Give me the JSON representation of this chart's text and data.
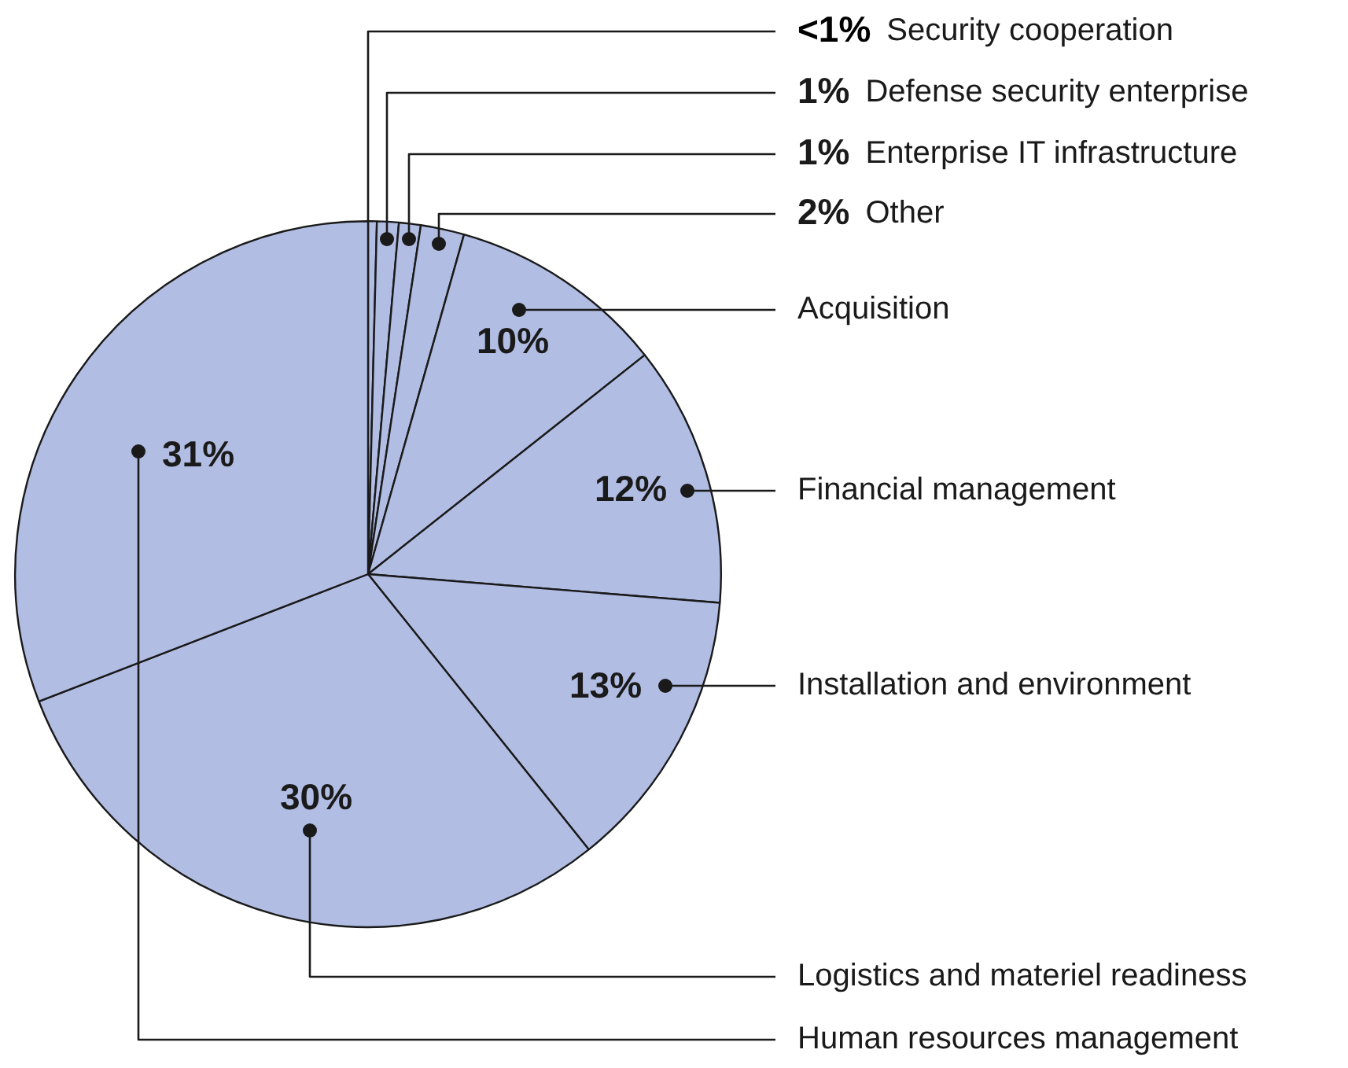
{
  "chart_data": {
    "type": "pie",
    "categories": [
      "Security cooperation",
      "Defense security enterprise",
      "Enterprise IT infrastructure",
      "Other",
      "Acquisition",
      "Financial management",
      "Installation and environment",
      "Logistics and materiel readiness",
      "Human resources management"
    ],
    "values": [
      0.4,
      1,
      1,
      2,
      10,
      12,
      13,
      30,
      31
    ],
    "colors": [
      "#b1bde3",
      "#b1bde3",
      "#b1bde3",
      "#b1bde3",
      "#b1bde3",
      "#b1bde3",
      "#b1bde3",
      "#b1bde3",
      "#b1bde3"
    ],
    "value_labels": [
      "<1%",
      "1%",
      "1%",
      "2%",
      "10%",
      "12%",
      "13%",
      "30%",
      "31%"
    ],
    "legend": false
  }
}
